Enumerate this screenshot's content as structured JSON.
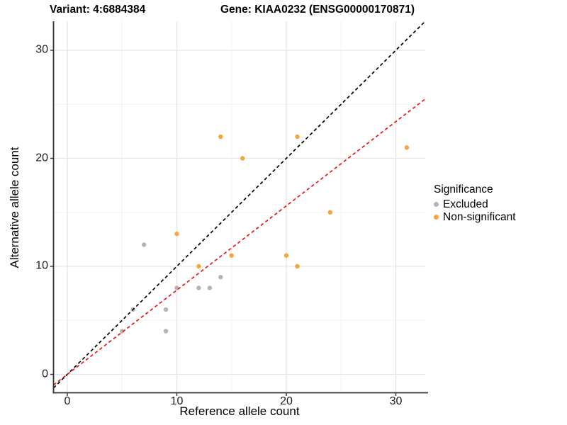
{
  "header": {
    "variant_title": "Variant: 4:6884384",
    "gene_title": "Gene: KIAA0232 (ENSG00000170871)"
  },
  "chart_data": {
    "type": "scatter",
    "title": "Variant: 4:6884384 — Gene: KIAA0232 (ENSG00000170871)",
    "xlabel": "Reference allele count",
    "ylabel": "Alternative allele count",
    "xlim": [
      -1.3,
      32.7
    ],
    "ylim": [
      -1.7,
      32.7
    ],
    "x_major_ticks": [
      0,
      10,
      20,
      30
    ],
    "x_minor_ticks": [
      5,
      15,
      25
    ],
    "y_major_ticks": [
      0,
      10,
      20,
      30
    ],
    "y_minor_ticks": [
      5,
      15,
      25
    ],
    "grid": true,
    "legend": {
      "title": "Significance",
      "position": "right"
    },
    "series": [
      {
        "name": "Excluded",
        "color": "#b5b5b5",
        "points": [
          [
            5,
            4
          ],
          [
            6,
            6
          ],
          [
            7,
            12
          ],
          [
            9,
            4
          ],
          [
            9,
            6
          ],
          [
            10,
            8
          ],
          [
            12,
            8
          ],
          [
            13,
            8
          ],
          [
            14,
            9
          ]
        ]
      },
      {
        "name": "Non-significant",
        "color": "#f9a43c",
        "points": [
          [
            10,
            13
          ],
          [
            12,
            10
          ],
          [
            14,
            22
          ],
          [
            15,
            11
          ],
          [
            16,
            20
          ],
          [
            20,
            11
          ],
          [
            21,
            10
          ],
          [
            21,
            22
          ],
          [
            24,
            15
          ],
          [
            31,
            21
          ]
        ]
      }
    ],
    "reference_lines": [
      {
        "name": "identity-line",
        "slope": 1,
        "intercept": 0,
        "color": "#000000",
        "style": "dashed"
      },
      {
        "name": "fitted-ratio-line",
        "slope": 0.78,
        "intercept": 0,
        "color": "#ee1414",
        "style": "dashed"
      }
    ]
  }
}
